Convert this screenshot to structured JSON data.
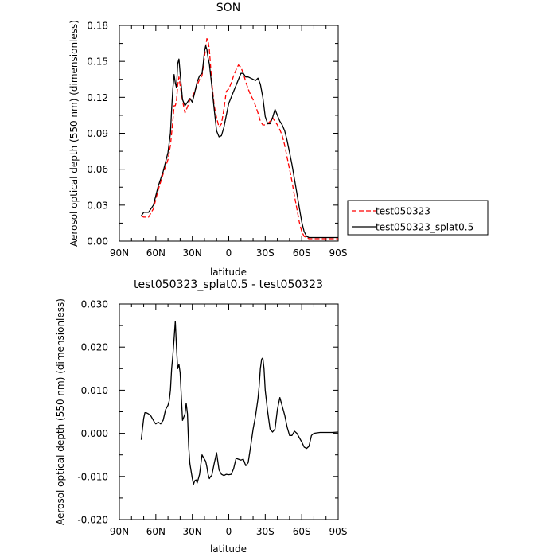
{
  "chart_data": [
    {
      "type": "line",
      "title": "SON",
      "xlabel": "latitude",
      "ylabel": "Aerosol optical depth (550 nm) (dimensionless)",
      "xlim": [
        90,
        -90
      ],
      "ylim": [
        0,
        0.18
      ],
      "xticks": [
        90,
        60,
        30,
        0,
        -30,
        -60,
        -90
      ],
      "xtick_labels": [
        "90N",
        "60N",
        "30N",
        "0",
        "30S",
        "60S",
        "90S"
      ],
      "yticks": [
        0,
        0.03,
        0.06,
        0.09,
        0.12,
        0.15,
        0.18
      ],
      "ytick_labels": [
        "0.00",
        "0.03",
        "0.06",
        "0.09",
        "0.12",
        "0.15",
        "0.18"
      ],
      "legend_position": "right",
      "series": [
        {
          "name": "test050323",
          "color": "#ff0000",
          "dash": "dashed",
          "x": [
            72,
            70,
            66,
            62,
            58,
            54,
            50,
            48,
            46,
            45,
            44,
            43,
            42,
            41,
            40,
            38,
            36,
            34,
            32,
            30,
            28,
            26,
            24,
            22,
            21,
            20,
            19,
            18,
            17,
            16,
            14,
            12,
            10,
            8,
            6,
            4,
            2,
            0,
            -2,
            -4,
            -6,
            -8,
            -10,
            -12,
            -14,
            -16,
            -18,
            -20,
            -22,
            -24,
            -26,
            -28,
            -30,
            -32,
            -34,
            -36,
            -38,
            -40,
            -42,
            -44,
            -46,
            -48,
            -50,
            -52,
            -54,
            -56,
            -58,
            -60,
            -62,
            -64,
            -66,
            -68,
            -70,
            -72,
            -75,
            -80,
            -85,
            -90
          ],
          "y": [
            0.021,
            0.02,
            0.02,
            0.027,
            0.043,
            0.056,
            0.068,
            0.08,
            0.1,
            0.113,
            0.113,
            0.117,
            0.13,
            0.137,
            0.13,
            0.117,
            0.107,
            0.112,
            0.118,
            0.12,
            0.125,
            0.13,
            0.135,
            0.138,
            0.145,
            0.153,
            0.162,
            0.169,
            0.167,
            0.16,
            0.133,
            0.113,
            0.103,
            0.095,
            0.098,
            0.11,
            0.125,
            0.127,
            0.132,
            0.138,
            0.143,
            0.147,
            0.145,
            0.14,
            0.133,
            0.127,
            0.122,
            0.118,
            0.113,
            0.107,
            0.1,
            0.097,
            0.097,
            0.098,
            0.1,
            0.103,
            0.1,
            0.097,
            0.093,
            0.088,
            0.08,
            0.07,
            0.06,
            0.05,
            0.038,
            0.027,
            0.016,
            0.008,
            0.004,
            0.003,
            0.002,
            0.002,
            0.002,
            0.002,
            0.002,
            0.002,
            0.002,
            0.002
          ]
        },
        {
          "name": "test050323_splat0.5",
          "color": "#000000",
          "dash": "solid",
          "x": [
            72,
            70,
            66,
            62,
            58,
            54,
            50,
            48,
            47,
            46,
            45,
            44,
            43,
            42,
            41,
            40,
            38,
            36,
            34,
            32,
            30,
            28,
            26,
            24,
            22,
            21,
            20,
            19,
            18,
            17,
            16,
            14,
            12,
            10,
            8,
            6,
            4,
            2,
            0,
            -2,
            -4,
            -6,
            -8,
            -10,
            -12,
            -14,
            -16,
            -18,
            -20,
            -22,
            -24,
            -26,
            -28,
            -30,
            -32,
            -34,
            -36,
            -38,
            -40,
            -42,
            -44,
            -46,
            -48,
            -50,
            -52,
            -54,
            -56,
            -58,
            -60,
            -62,
            -64,
            -66,
            -68,
            -70,
            -72,
            -75,
            -80,
            -85,
            -90
          ],
          "y": [
            0.021,
            0.024,
            0.024,
            0.03,
            0.046,
            0.058,
            0.074,
            0.09,
            0.11,
            0.127,
            0.139,
            0.132,
            0.128,
            0.148,
            0.152,
            0.14,
            0.118,
            0.113,
            0.116,
            0.119,
            0.116,
            0.124,
            0.133,
            0.138,
            0.14,
            0.148,
            0.158,
            0.163,
            0.16,
            0.153,
            0.148,
            0.13,
            0.11,
            0.092,
            0.087,
            0.088,
            0.095,
            0.105,
            0.115,
            0.12,
            0.125,
            0.13,
            0.135,
            0.14,
            0.14,
            0.137,
            0.137,
            0.136,
            0.135,
            0.134,
            0.136,
            0.131,
            0.12,
            0.104,
            0.098,
            0.098,
            0.103,
            0.11,
            0.105,
            0.1,
            0.097,
            0.092,
            0.084,
            0.074,
            0.064,
            0.052,
            0.04,
            0.028,
            0.016,
            0.008,
            0.004,
            0.003,
            0.003,
            0.003,
            0.003,
            0.003,
            0.003,
            0.003,
            0.003
          ]
        }
      ]
    },
    {
      "type": "line",
      "title": "test050323_splat0.5 - test050323",
      "xlabel": "latitude",
      "ylabel": "Aerosol optical depth (550 nm) (dimensionless)",
      "xlim": [
        90,
        -90
      ],
      "ylim": [
        -0.02,
        0.03
      ],
      "xticks": [
        90,
        60,
        30,
        0,
        -30,
        -60,
        -90
      ],
      "xtick_labels": [
        "90N",
        "60N",
        "30N",
        "0",
        "30S",
        "60S",
        "90S"
      ],
      "yticks": [
        -0.02,
        -0.01,
        0,
        0.01,
        0.02,
        0.03
      ],
      "ytick_labels": [
        "-0.020",
        "-0.010",
        "0.000",
        "0.010",
        "0.020",
        "0.030"
      ],
      "series": [
        {
          "color": "#000000",
          "dash": "solid",
          "x": [
            72,
            71,
            70,
            69,
            68,
            66,
            64,
            62,
            61,
            60,
            58,
            56,
            54,
            52,
            51,
            50,
            49,
            48,
            47,
            46,
            45,
            44,
            43,
            42,
            41,
            40,
            38,
            36,
            35,
            34,
            33,
            32,
            30,
            29,
            28,
            27,
            26,
            24,
            22,
            21,
            20,
            19,
            18,
            17,
            16,
            15,
            14,
            12,
            10,
            8,
            6,
            4,
            2,
            0,
            -2,
            -4,
            -6,
            -8,
            -10,
            -12,
            -14,
            -16,
            -18,
            -20,
            -22,
            -24,
            -25,
            -26,
            -27,
            -28,
            -29,
            -30,
            -32,
            -34,
            -36,
            -38,
            -40,
            -42,
            -44,
            -46,
            -48,
            -50,
            -52,
            -54,
            -56,
            -58,
            -60,
            -62,
            -64,
            -66,
            -68,
            -70,
            -72,
            -75,
            -80,
            -85,
            -90
          ],
          "y": [
            -0.0015,
            0.001,
            0.0035,
            0.0048,
            0.0048,
            0.0045,
            0.004,
            0.003,
            0.0025,
            0.0022,
            0.0026,
            0.0022,
            0.003,
            0.0055,
            0.006,
            0.0065,
            0.0075,
            0.01,
            0.015,
            0.018,
            0.022,
            0.026,
            0.02,
            0.015,
            0.016,
            0.014,
            0.003,
            0.0045,
            0.007,
            0.0045,
            -0.003,
            -0.007,
            -0.0105,
            -0.0118,
            -0.011,
            -0.0108,
            -0.0115,
            -0.0095,
            -0.005,
            -0.0055,
            -0.006,
            -0.0065,
            -0.0078,
            -0.0095,
            -0.0105,
            -0.01,
            -0.0098,
            -0.007,
            -0.0045,
            -0.0085,
            -0.0095,
            -0.0098,
            -0.0095,
            -0.0096,
            -0.0095,
            -0.0082,
            -0.0058,
            -0.006,
            -0.0062,
            -0.006,
            -0.0075,
            -0.0068,
            -0.003,
            0.001,
            0.004,
            0.008,
            0.011,
            0.015,
            0.0172,
            0.0175,
            0.015,
            0.01,
            0.005,
            0.001,
            0.0003,
            0.001,
            0.0055,
            0.0083,
            0.0063,
            0.0042,
            0.0015,
            -0.0005,
            -0.0005,
            0.0005,
            0,
            -0.001,
            -0.002,
            -0.0032,
            -0.0035,
            -0.003,
            -0.0005,
            0,
            0.0001,
            0.0002,
            0.0002,
            0.0002,
            0.0003
          ]
        }
      ]
    }
  ]
}
